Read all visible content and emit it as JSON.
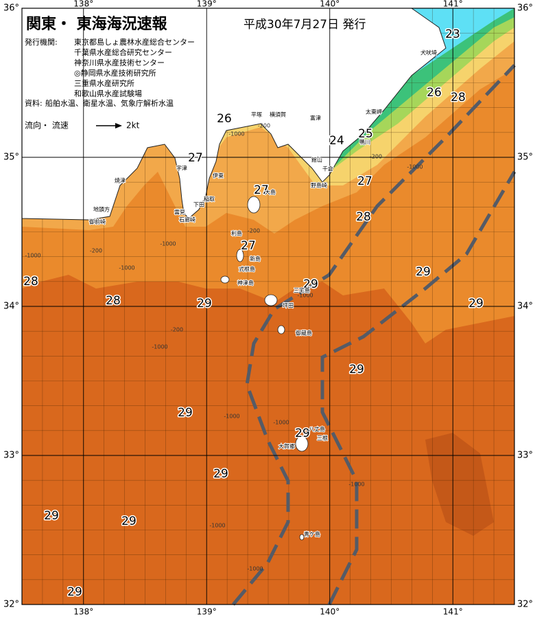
{
  "header": {
    "title": "関東・ 東海海況速報",
    "date": "平成30年7月27日 発行"
  },
  "issuers": {
    "label": "発行機関:",
    "items": [
      "東京都島しょ農林水産総合センター",
      "千葉県水産総合研究センター",
      "神奈川県水産技術センター",
      "◎静岡県水産技術研究所",
      "三重県水産研究所",
      "和歌山県水産試験場"
    ]
  },
  "sources": {
    "label": "資料:",
    "text": "船舶水温、衛星水温、気象庁解析水温"
  },
  "current_legend": {
    "label": "流向・ 流速",
    "speed": "2kt"
  },
  "axes": {
    "longitudes": [
      "138°",
      "139°",
      "140°",
      "141°"
    ],
    "latitudes": [
      "36°",
      "35°",
      "34°",
      "33°",
      "32°"
    ]
  },
  "temperature_labels": [
    "23",
    "26",
    "28",
    "26",
    "24",
    "25",
    "27",
    "27",
    "27",
    "28",
    "27",
    "28",
    "28",
    "29",
    "29",
    "29",
    "29",
    "29",
    "29",
    "29",
    "29",
    "29",
    "29",
    "29"
  ],
  "depth_labels": [
    "-200",
    "-1000",
    "-200",
    "-1000",
    "-1000",
    "-200",
    "-1000",
    "-1000",
    "-200",
    "-1000",
    "-200",
    "-1000",
    "-1000",
    "-1000",
    "-1000",
    "-1000",
    "-1000"
  ],
  "place_names": [
    "犬吠埼",
    "太東岬",
    "平塚",
    "横須賀",
    "富津",
    "鴨川",
    "館山",
    "千倉",
    "野島崎",
    "伊東",
    "宇津",
    "焼津",
    "地頭方",
    "御前崎",
    "稲取",
    "下田",
    "雲見",
    "石廊崎",
    "大島",
    "利島",
    "新島",
    "式根島",
    "神津島",
    "三宅島",
    "坪田",
    "御蔵島",
    "八丈島",
    "三根",
    "大賀郷",
    "青ケ島"
  ]
}
